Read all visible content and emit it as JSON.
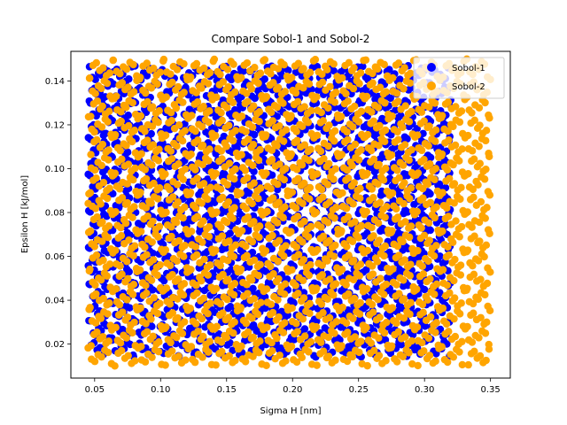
{
  "chart_data": {
    "type": "scatter",
    "title": "Compare Sobol-1 and Sobol-2",
    "xlabel": "Sigma H [nm]",
    "ylabel": "Epsilon H [kJ/mol]",
    "xlim": [
      0.032,
      0.365
    ],
    "ylim": [
      0.0045,
      0.1535
    ],
    "xticks": [
      "0.05",
      "0.10",
      "0.15",
      "0.20",
      "0.25",
      "0.30",
      "0.35"
    ],
    "yticks": [
      "0.02",
      "0.04",
      "0.06",
      "0.08",
      "0.10",
      "0.12",
      "0.14"
    ],
    "grid": false,
    "legend_position": "top-right",
    "marker": "circle",
    "series": [
      {
        "name": "Sobol-1",
        "color": "#0000ff",
        "n_points": 2048,
        "x_range": [
          0.045,
          0.32
        ],
        "y_range": [
          0.014,
          0.147
        ]
      },
      {
        "name": "Sobol-2",
        "color": "#ffa500",
        "n_points": 2048,
        "x_range": [
          0.045,
          0.35
        ],
        "y_range": [
          0.01,
          0.15
        ]
      }
    ]
  }
}
